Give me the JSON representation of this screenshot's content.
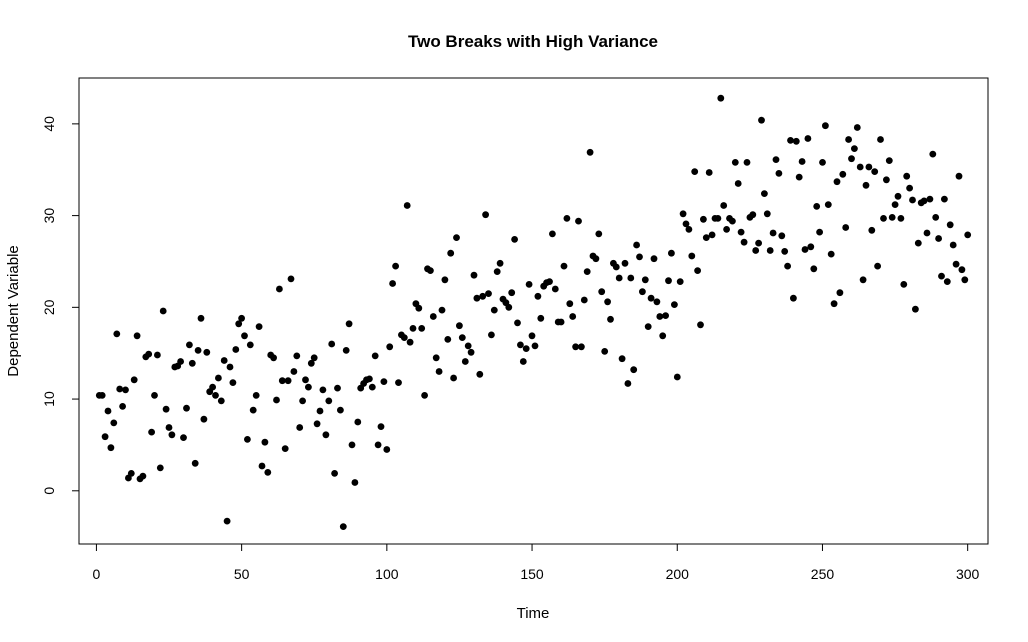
{
  "chart_data": {
    "type": "scatter",
    "title": "Two Breaks with High Variance",
    "xlabel": "Time",
    "ylabel": "Dependent Variable",
    "xlim": [
      -6,
      307
    ],
    "ylim": [
      -5.8,
      45
    ],
    "xticks": [
      0,
      50,
      100,
      150,
      200,
      250,
      300
    ],
    "yticks": [
      0,
      10,
      20,
      30,
      40
    ],
    "grid": false,
    "legend": "none",
    "point_color": "#000000",
    "series": [
      {
        "points": [
          [
            1,
            10.4
          ],
          [
            2,
            10.4
          ],
          [
            3,
            5.9
          ],
          [
            4,
            8.7
          ],
          [
            5,
            4.7
          ],
          [
            6,
            7.4
          ],
          [
            7,
            17.1
          ],
          [
            8,
            11.1
          ],
          [
            9,
            9.2
          ],
          [
            10,
            11.0
          ],
          [
            11,
            1.4
          ],
          [
            12,
            1.9
          ],
          [
            13,
            12.1
          ],
          [
            14,
            16.9
          ],
          [
            15,
            1.3
          ],
          [
            16,
            1.6
          ],
          [
            17,
            14.6
          ],
          [
            18,
            14.9
          ],
          [
            19,
            6.4
          ],
          [
            20,
            10.4
          ],
          [
            21,
            14.8
          ],
          [
            22,
            2.5
          ],
          [
            23,
            19.6
          ],
          [
            24,
            8.9
          ],
          [
            25,
            6.9
          ],
          [
            26,
            6.1
          ],
          [
            27,
            13.5
          ],
          [
            28,
            13.6
          ],
          [
            29,
            14.1
          ],
          [
            30,
            5.8
          ],
          [
            31,
            9.0
          ],
          [
            32,
            15.9
          ],
          [
            33,
            13.9
          ],
          [
            34,
            3.0
          ],
          [
            35,
            15.3
          ],
          [
            36,
            18.8
          ],
          [
            37,
            7.8
          ],
          [
            38,
            15.1
          ],
          [
            39,
            10.8
          ],
          [
            40,
            11.3
          ],
          [
            41,
            10.4
          ],
          [
            42,
            12.3
          ],
          [
            43,
            9.8
          ],
          [
            44,
            14.2
          ],
          [
            45,
            -3.3
          ],
          [
            46,
            13.5
          ],
          [
            47,
            11.8
          ],
          [
            48,
            15.4
          ],
          [
            49,
            18.2
          ],
          [
            50,
            18.8
          ],
          [
            51,
            16.9
          ],
          [
            52,
            5.6
          ],
          [
            53,
            15.9
          ],
          [
            54,
            8.8
          ],
          [
            55,
            10.4
          ],
          [
            56,
            17.9
          ],
          [
            57,
            2.7
          ],
          [
            58,
            5.3
          ],
          [
            59,
            2.0
          ],
          [
            60,
            14.8
          ],
          [
            61,
            14.5
          ],
          [
            62,
            9.9
          ],
          [
            63,
            22.0
          ],
          [
            64,
            12.0
          ],
          [
            65,
            4.6
          ],
          [
            66,
            12.0
          ],
          [
            67,
            23.1
          ],
          [
            68,
            13.0
          ],
          [
            69,
            14.7
          ],
          [
            70,
            6.9
          ],
          [
            71,
            9.8
          ],
          [
            72,
            12.1
          ],
          [
            73,
            11.3
          ],
          [
            74,
            13.9
          ],
          [
            75,
            14.5
          ],
          [
            76,
            7.3
          ],
          [
            77,
            8.7
          ],
          [
            78,
            11.0
          ],
          [
            79,
            6.1
          ],
          [
            80,
            9.8
          ],
          [
            81,
            16.0
          ],
          [
            82,
            1.9
          ],
          [
            83,
            11.2
          ],
          [
            84,
            8.8
          ],
          [
            85,
            -3.9
          ],
          [
            86,
            15.3
          ],
          [
            87,
            18.2
          ],
          [
            88,
            5.0
          ],
          [
            89,
            0.9
          ],
          [
            90,
            7.5
          ],
          [
            91,
            11.2
          ],
          [
            92,
            11.7
          ],
          [
            93,
            12.1
          ],
          [
            94,
            12.2
          ],
          [
            95,
            11.3
          ],
          [
            96,
            14.7
          ],
          [
            97,
            5.0
          ],
          [
            98,
            7.0
          ],
          [
            99,
            11.9
          ],
          [
            100,
            4.5
          ],
          [
            101,
            15.7
          ],
          [
            102,
            22.6
          ],
          [
            103,
            24.5
          ],
          [
            104,
            11.8
          ],
          [
            105,
            17.0
          ],
          [
            106,
            16.7
          ],
          [
            107,
            31.1
          ],
          [
            108,
            16.2
          ],
          [
            109,
            17.7
          ],
          [
            110,
            20.4
          ],
          [
            111,
            19.9
          ],
          [
            112,
            17.7
          ],
          [
            113,
            10.4
          ],
          [
            114,
            24.2
          ],
          [
            115,
            24.0
          ],
          [
            116,
            19.0
          ],
          [
            117,
            14.5
          ],
          [
            118,
            13.0
          ],
          [
            119,
            19.7
          ],
          [
            120,
            23.0
          ],
          [
            121,
            16.5
          ],
          [
            122,
            25.9
          ],
          [
            123,
            12.3
          ],
          [
            124,
            27.6
          ],
          [
            125,
            18.0
          ],
          [
            126,
            16.7
          ],
          [
            127,
            14.1
          ],
          [
            128,
            15.8
          ],
          [
            129,
            15.1
          ],
          [
            130,
            23.5
          ],
          [
            131,
            21.0
          ],
          [
            132,
            12.7
          ],
          [
            133,
            21.2
          ],
          [
            134,
            30.1
          ],
          [
            135,
            21.5
          ],
          [
            136,
            17.0
          ],
          [
            137,
            19.7
          ],
          [
            138,
            23.9
          ],
          [
            139,
            24.8
          ],
          [
            140,
            20.9
          ],
          [
            141,
            20.5
          ],
          [
            142,
            20.0
          ],
          [
            143,
            21.6
          ],
          [
            144,
            27.4
          ],
          [
            145,
            18.3
          ],
          [
            146,
            15.9
          ],
          [
            147,
            14.1
          ],
          [
            148,
            15.5
          ],
          [
            149,
            22.5
          ],
          [
            150,
            16.9
          ],
          [
            151,
            15.8
          ],
          [
            152,
            21.2
          ],
          [
            153,
            18.8
          ],
          [
            154,
            22.3
          ],
          [
            155,
            22.7
          ],
          [
            156,
            22.8
          ],
          [
            157,
            28.0
          ],
          [
            158,
            22.0
          ],
          [
            159,
            18.4
          ],
          [
            160,
            18.4
          ],
          [
            161,
            24.5
          ],
          [
            162,
            29.7
          ],
          [
            163,
            20.4
          ],
          [
            164,
            19.0
          ],
          [
            165,
            15.7
          ],
          [
            166,
            29.4
          ],
          [
            167,
            15.7
          ],
          [
            168,
            20.8
          ],
          [
            169,
            23.9
          ],
          [
            170,
            36.9
          ],
          [
            171,
            25.6
          ],
          [
            172,
            25.3
          ],
          [
            173,
            28.0
          ],
          [
            174,
            21.7
          ],
          [
            175,
            15.2
          ],
          [
            176,
            20.6
          ],
          [
            177,
            18.7
          ],
          [
            178,
            24.8
          ],
          [
            179,
            24.4
          ],
          [
            180,
            23.2
          ],
          [
            181,
            14.4
          ],
          [
            182,
            24.8
          ],
          [
            183,
            11.7
          ],
          [
            184,
            23.2
          ],
          [
            185,
            13.2
          ],
          [
            186,
            26.8
          ],
          [
            187,
            25.5
          ],
          [
            188,
            21.7
          ],
          [
            189,
            23.0
          ],
          [
            190,
            17.9
          ],
          [
            191,
            21.0
          ],
          [
            192,
            25.3
          ],
          [
            193,
            20.6
          ],
          [
            194,
            19.0
          ],
          [
            195,
            16.9
          ],
          [
            196,
            19.1
          ],
          [
            197,
            22.9
          ],
          [
            198,
            25.9
          ],
          [
            199,
            20.3
          ],
          [
            200,
            12.4
          ],
          [
            201,
            22.8
          ],
          [
            202,
            30.2
          ],
          [
            203,
            29.1
          ],
          [
            204,
            28.5
          ],
          [
            205,
            25.6
          ],
          [
            206,
            34.8
          ],
          [
            207,
            24.0
          ],
          [
            208,
            18.1
          ],
          [
            209,
            29.6
          ],
          [
            210,
            27.6
          ],
          [
            211,
            34.7
          ],
          [
            212,
            27.9
          ],
          [
            213,
            29.7
          ],
          [
            214,
            29.7
          ],
          [
            215,
            42.8
          ],
          [
            216,
            31.1
          ],
          [
            217,
            28.5
          ],
          [
            218,
            29.7
          ],
          [
            219,
            29.4
          ],
          [
            220,
            35.8
          ],
          [
            221,
            33.5
          ],
          [
            222,
            28.2
          ],
          [
            223,
            27.1
          ],
          [
            224,
            35.8
          ],
          [
            225,
            29.8
          ],
          [
            226,
            30.1
          ],
          [
            227,
            26.2
          ],
          [
            228,
            27.0
          ],
          [
            229,
            40.4
          ],
          [
            230,
            32.4
          ],
          [
            231,
            30.2
          ],
          [
            232,
            26.2
          ],
          [
            233,
            28.1
          ],
          [
            234,
            36.1
          ],
          [
            235,
            34.6
          ],
          [
            236,
            27.8
          ],
          [
            237,
            26.1
          ],
          [
            238,
            24.5
          ],
          [
            239,
            38.2
          ],
          [
            240,
            21.0
          ],
          [
            241,
            38.1
          ],
          [
            242,
            34.2
          ],
          [
            243,
            35.9
          ],
          [
            244,
            26.3
          ],
          [
            245,
            38.4
          ],
          [
            246,
            26.6
          ],
          [
            247,
            24.2
          ],
          [
            248,
            31.0
          ],
          [
            249,
            28.2
          ],
          [
            250,
            35.8
          ],
          [
            251,
            39.8
          ],
          [
            252,
            31.2
          ],
          [
            253,
            25.8
          ],
          [
            254,
            20.4
          ],
          [
            255,
            33.7
          ],
          [
            256,
            21.6
          ],
          [
            257,
            34.5
          ],
          [
            258,
            28.7
          ],
          [
            259,
            38.3
          ],
          [
            260,
            36.2
          ],
          [
            261,
            37.3
          ],
          [
            262,
            39.6
          ],
          [
            263,
            35.3
          ],
          [
            264,
            23.0
          ],
          [
            265,
            33.3
          ],
          [
            266,
            35.3
          ],
          [
            267,
            28.4
          ],
          [
            268,
            34.8
          ],
          [
            269,
            24.5
          ],
          [
            270,
            38.3
          ],
          [
            271,
            29.7
          ],
          [
            272,
            33.9
          ],
          [
            273,
            36.0
          ],
          [
            274,
            29.8
          ],
          [
            275,
            31.2
          ],
          [
            276,
            32.1
          ],
          [
            277,
            29.7
          ],
          [
            278,
            22.5
          ],
          [
            279,
            34.3
          ],
          [
            280,
            33.0
          ],
          [
            281,
            31.7
          ],
          [
            282,
            19.8
          ],
          [
            283,
            27.0
          ],
          [
            284,
            31.4
          ],
          [
            285,
            31.6
          ],
          [
            286,
            28.1
          ],
          [
            287,
            31.8
          ],
          [
            288,
            36.7
          ],
          [
            289,
            29.8
          ],
          [
            290,
            27.5
          ],
          [
            291,
            23.4
          ],
          [
            292,
            31.8
          ],
          [
            293,
            22.8
          ],
          [
            294,
            29.0
          ],
          [
            295,
            26.8
          ],
          [
            296,
            24.7
          ],
          [
            297,
            34.3
          ],
          [
            298,
            24.1
          ],
          [
            299,
            23.0
          ],
          [
            300,
            27.9
          ]
        ]
      }
    ]
  }
}
